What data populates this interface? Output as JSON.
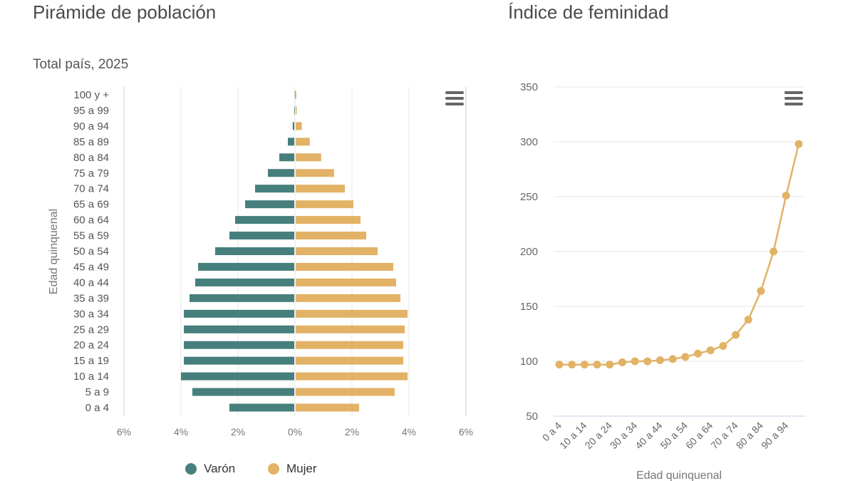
{
  "titles": {
    "pyramid": "Pirámide de población",
    "femininity": "Índice de feminidad",
    "subtitle": "Total país, 2025"
  },
  "colors": {
    "male": "#467F7C",
    "female": "#E2B266",
    "line": "#E2B266"
  },
  "icons": {
    "menu": "hamburger-menu-icon"
  },
  "chart_data": [
    {
      "type": "bar",
      "orientation": "horizontal",
      "title": "Pirámide de población",
      "subtitle": "Total país, 2025",
      "ylabel": "Edad quinquenal",
      "categories": [
        "0 a 4",
        "5 a 9",
        "10 a 14",
        "15 a 19",
        "20 a 24",
        "25 a 29",
        "30 a 34",
        "35 a 39",
        "40 a 44",
        "45 a 49",
        "50 a 54",
        "55 a 59",
        "60 a 64",
        "65 a 69",
        "70 a 74",
        "75 a 79",
        "80 a 84",
        "85 a 89",
        "90 a 94",
        "95 a 99",
        "100 y +"
      ],
      "xlim": [
        -6,
        6
      ],
      "xticks": [
        -6,
        -4,
        -2,
        0,
        2,
        4,
        6
      ],
      "xtick_labels": [
        "6%",
        "4%",
        "2%",
        "0%",
        "2%",
        "4%",
        "6%"
      ],
      "legend": "bottom-center",
      "series": [
        {
          "name": "Varón",
          "values": [
            -2.3,
            -3.6,
            -4.0,
            -3.9,
            -3.9,
            -3.9,
            -3.9,
            -3.7,
            -3.5,
            -3.4,
            -2.8,
            -2.3,
            -2.1,
            -1.75,
            -1.4,
            -0.95,
            -0.55,
            -0.25,
            -0.08,
            -0.02,
            -0.005
          ]
        },
        {
          "name": "Mujer",
          "values": [
            2.25,
            3.5,
            3.95,
            3.8,
            3.8,
            3.85,
            3.95,
            3.7,
            3.55,
            3.45,
            2.9,
            2.5,
            2.3,
            2.05,
            1.75,
            1.37,
            0.92,
            0.52,
            0.24,
            0.06,
            0.01
          ]
        }
      ]
    },
    {
      "type": "line",
      "title": "Índice de feminidad",
      "xlabel": "Edad quinquenal",
      "x": [
        "0 a 4",
        "5 a 9",
        "10 a 14",
        "15 a 19",
        "20 a 24",
        "25 a 29",
        "30 a 34",
        "35 a 39",
        "40 a 44",
        "45 a 49",
        "50 a 54",
        "55 a 59",
        "60 a 64",
        "65 a 69",
        "70 a 74",
        "75 a 79",
        "80 a 84",
        "85 a 89",
        "90 a 94",
        "95 a 99"
      ],
      "xtick_labels_shown": [
        "0 a 4",
        "10 a 14",
        "20 a 24",
        "30 a 34",
        "40 a 44",
        "50 a 54",
        "60 a 64",
        "70 a 74",
        "80 a 84",
        "90 a 94"
      ],
      "ylim": [
        50,
        350
      ],
      "yticks": [
        50,
        100,
        150,
        200,
        250,
        300,
        350
      ],
      "series": [
        {
          "values": [
            97,
            97,
            97,
            97,
            97,
            99,
            100,
            100,
            101,
            102,
            104,
            107,
            110,
            114,
            124,
            138,
            164,
            200,
            251,
            298
          ]
        }
      ]
    }
  ]
}
